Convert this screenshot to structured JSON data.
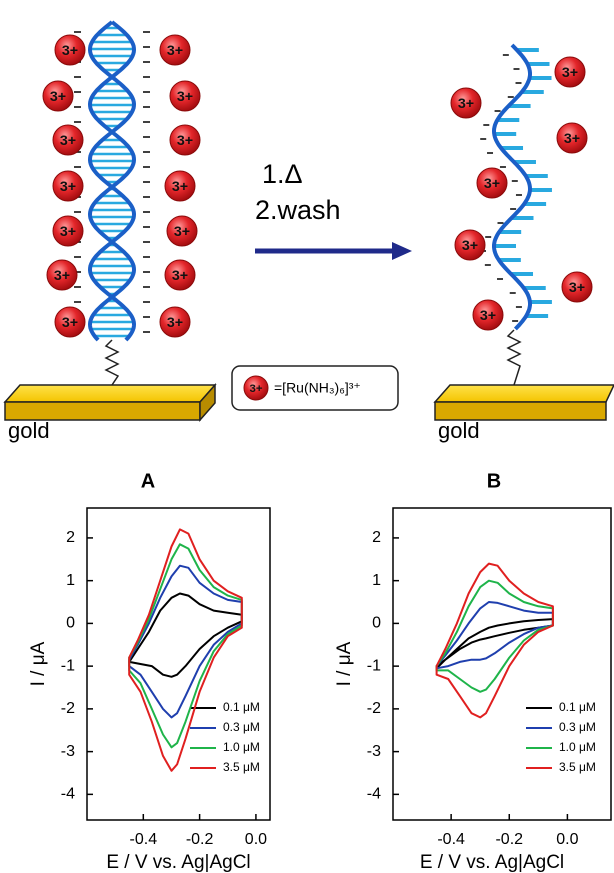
{
  "diagram": {
    "steps": [
      "1.Δ",
      "2.wash"
    ],
    "left_surface": "gold",
    "right_surface": "gold",
    "ion_label": "3+",
    "legend_formula": "=[Ru(NH₃)₆]³⁺"
  },
  "chart_data": [
    {
      "type": "line",
      "title": "A",
      "x_label": "E / V vs. Ag|AgCl",
      "y_label": "I / μA",
      "xlim": [
        -0.6,
        0.05
      ],
      "ylim": [
        -4.6,
        2.7
      ],
      "xticks": [
        -0.4,
        -0.2,
        {
          "value": 0,
          "label": "0.0"
        }
      ],
      "yticks": [
        2,
        1,
        0,
        -1,
        -2,
        -3,
        -4
      ],
      "series": [
        {
          "name": "0.1 μM",
          "color": "#000000",
          "x": [
            -0.45,
            -0.42,
            -0.38,
            -0.34,
            -0.3,
            -0.27,
            -0.24,
            -0.2,
            -0.15,
            -0.1,
            -0.05,
            -0.05,
            -0.1,
            -0.15,
            -0.2,
            -0.25,
            -0.28,
            -0.3,
            -0.33,
            -0.37,
            -0.41,
            -0.45
          ],
          "values": [
            -0.9,
            -0.6,
            -0.2,
            0.3,
            0.6,
            0.7,
            0.65,
            0.45,
            0.3,
            0.25,
            0.2,
            0.05,
            -0.1,
            -0.3,
            -0.6,
            -1.0,
            -1.2,
            -1.25,
            -1.2,
            -1.0,
            -0.95,
            -0.9
          ]
        },
        {
          "name": "0.3 μM",
          "color": "#1f3fae",
          "x": [
            -0.45,
            -0.42,
            -0.38,
            -0.34,
            -0.3,
            -0.27,
            -0.24,
            -0.2,
            -0.15,
            -0.1,
            -0.05,
            -0.05,
            -0.1,
            -0.15,
            -0.2,
            -0.25,
            -0.28,
            -0.3,
            -0.33,
            -0.37,
            -0.41,
            -0.45
          ],
          "values": [
            -0.85,
            -0.5,
            0.0,
            0.6,
            1.1,
            1.35,
            1.3,
            0.95,
            0.7,
            0.55,
            0.5,
            0.0,
            -0.2,
            -0.5,
            -1.0,
            -1.7,
            -2.1,
            -2.2,
            -2.0,
            -1.6,
            -1.2,
            -1.0
          ]
        },
        {
          "name": "1.0 μM",
          "color": "#1fb44a",
          "x": [
            -0.45,
            -0.42,
            -0.38,
            -0.34,
            -0.3,
            -0.27,
            -0.24,
            -0.2,
            -0.15,
            -0.1,
            -0.05,
            -0.05,
            -0.1,
            -0.15,
            -0.2,
            -0.25,
            -0.28,
            -0.3,
            -0.33,
            -0.37,
            -0.41,
            -0.45
          ],
          "values": [
            -0.8,
            -0.45,
            0.1,
            0.8,
            1.5,
            1.85,
            1.75,
            1.25,
            0.85,
            0.65,
            0.55,
            -0.05,
            -0.25,
            -0.65,
            -1.35,
            -2.3,
            -2.8,
            -2.9,
            -2.6,
            -2.0,
            -1.4,
            -1.1
          ]
        },
        {
          "name": "3.5 μM",
          "color": "#e02020",
          "x": [
            -0.45,
            -0.42,
            -0.38,
            -0.34,
            -0.3,
            -0.27,
            -0.24,
            -0.2,
            -0.15,
            -0.1,
            -0.05,
            -0.05,
            -0.1,
            -0.15,
            -0.2,
            -0.25,
            -0.28,
            -0.3,
            -0.33,
            -0.37,
            -0.41,
            -0.45
          ],
          "values": [
            -0.8,
            -0.4,
            0.2,
            1.0,
            1.8,
            2.2,
            2.1,
            1.5,
            1.0,
            0.75,
            0.6,
            -0.1,
            -0.3,
            -0.8,
            -1.6,
            -2.7,
            -3.3,
            -3.45,
            -3.1,
            -2.3,
            -1.6,
            -1.2
          ]
        }
      ]
    },
    {
      "type": "line",
      "title": "B",
      "x_label": "E / V vs. Ag|AgCl",
      "y_label": "I / μA",
      "xlim": [
        -0.6,
        0.15
      ],
      "ylim": [
        -4.6,
        2.7
      ],
      "xticks": [
        -0.4,
        -0.2,
        {
          "value": 0,
          "label": "0.0"
        }
      ],
      "yticks": [
        2,
        1,
        0,
        -1,
        -2,
        -3,
        -4
      ],
      "series": [
        {
          "name": "0.1 μM",
          "color": "#000000",
          "x": [
            -0.45,
            -0.42,
            -0.38,
            -0.34,
            -0.3,
            -0.27,
            -0.24,
            -0.2,
            -0.15,
            -0.1,
            -0.05,
            -0.05,
            -0.1,
            -0.15,
            -0.2,
            -0.25,
            -0.28,
            -0.3,
            -0.33,
            -0.37,
            -0.41,
            -0.45
          ],
          "values": [
            -1.05,
            -0.85,
            -0.6,
            -0.35,
            -0.2,
            -0.1,
            -0.05,
            0.0,
            0.05,
            0.08,
            0.1,
            -0.05,
            -0.1,
            -0.15,
            -0.22,
            -0.3,
            -0.35,
            -0.38,
            -0.45,
            -0.6,
            -0.8,
            -1.0
          ]
        },
        {
          "name": "0.3 μM",
          "color": "#1f3fae",
          "x": [
            -0.45,
            -0.42,
            -0.38,
            -0.34,
            -0.3,
            -0.27,
            -0.24,
            -0.2,
            -0.15,
            -0.1,
            -0.05,
            -0.05,
            -0.1,
            -0.15,
            -0.2,
            -0.25,
            -0.28,
            -0.3,
            -0.33,
            -0.37,
            -0.41,
            -0.45
          ],
          "values": [
            -1.0,
            -0.75,
            -0.4,
            0.0,
            0.35,
            0.5,
            0.48,
            0.4,
            0.3,
            0.25,
            0.25,
            -0.05,
            -0.1,
            -0.25,
            -0.45,
            -0.7,
            -0.82,
            -0.85,
            -0.85,
            -0.9,
            -1.0,
            -1.05
          ]
        },
        {
          "name": "1.0 μM",
          "color": "#1fb44a",
          "x": [
            -0.45,
            -0.42,
            -0.38,
            -0.34,
            -0.3,
            -0.27,
            -0.24,
            -0.2,
            -0.15,
            -0.1,
            -0.05,
            -0.05,
            -0.1,
            -0.15,
            -0.2,
            -0.25,
            -0.28,
            -0.3,
            -0.33,
            -0.37,
            -0.41,
            -0.45
          ],
          "values": [
            -1.0,
            -0.7,
            -0.2,
            0.4,
            0.85,
            1.0,
            0.95,
            0.7,
            0.5,
            0.4,
            0.35,
            -0.05,
            -0.15,
            -0.4,
            -0.8,
            -1.3,
            -1.55,
            -1.6,
            -1.5,
            -1.3,
            -1.1,
            -1.1
          ]
        },
        {
          "name": "3.5 μM",
          "color": "#e02020",
          "x": [
            -0.45,
            -0.42,
            -0.38,
            -0.34,
            -0.3,
            -0.27,
            -0.24,
            -0.2,
            -0.15,
            -0.1,
            -0.05,
            -0.05,
            -0.1,
            -0.15,
            -0.2,
            -0.25,
            -0.28,
            -0.3,
            -0.33,
            -0.37,
            -0.41,
            -0.45
          ],
          "values": [
            -1.0,
            -0.6,
            0.0,
            0.7,
            1.2,
            1.4,
            1.35,
            1.0,
            0.7,
            0.5,
            0.4,
            -0.05,
            -0.2,
            -0.5,
            -1.0,
            -1.7,
            -2.1,
            -2.2,
            -2.1,
            -1.7,
            -1.3,
            -1.2
          ]
        }
      ]
    }
  ]
}
